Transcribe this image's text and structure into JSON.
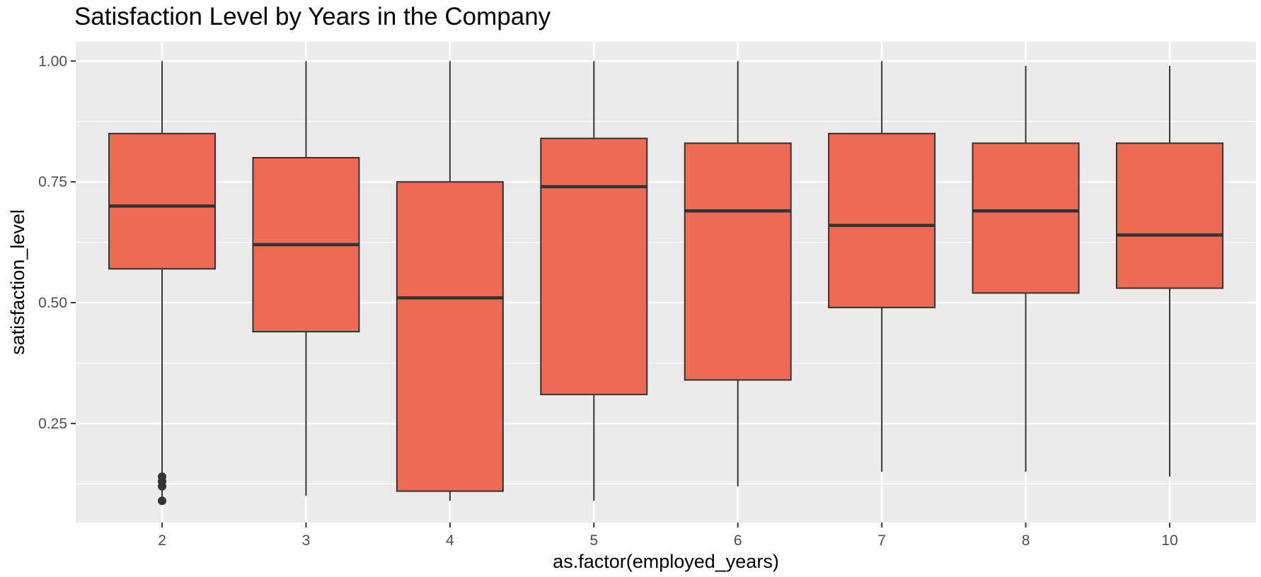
{
  "chart_data": {
    "type": "boxplot",
    "title": "Satisfaction Level by Years in the Company",
    "xlabel": "as.factor(employed_years)",
    "ylabel": "satisfaction_level",
    "ylim": [
      0.045,
      1.04
    ],
    "yticks": [
      0.25,
      0.5,
      0.75,
      1.0
    ],
    "ytick_labels": [
      "0.25",
      "0.50",
      "0.75",
      "1.00"
    ],
    "grid": true,
    "legend": "none",
    "colors": {
      "fill": "#ee6a52",
      "stroke": "#333333",
      "panel": "#ebebeb",
      "grid": "#ffffff"
    },
    "categories": [
      "2",
      "3",
      "4",
      "5",
      "6",
      "7",
      "8",
      "10"
    ],
    "boxes": [
      {
        "category": "2",
        "min": 0.09,
        "q1": 0.57,
        "median": 0.7,
        "q3": 0.85,
        "max": 1.0,
        "outliers": [
          0.09,
          0.12,
          0.13,
          0.14
        ]
      },
      {
        "category": "3",
        "min": 0.1,
        "q1": 0.44,
        "median": 0.62,
        "q3": 0.8,
        "max": 1.0,
        "outliers": []
      },
      {
        "category": "4",
        "min": 0.09,
        "q1": 0.11,
        "median": 0.51,
        "q3": 0.75,
        "max": 1.0,
        "outliers": []
      },
      {
        "category": "5",
        "min": 0.09,
        "q1": 0.31,
        "median": 0.74,
        "q3": 0.84,
        "max": 1.0,
        "outliers": []
      },
      {
        "category": "6",
        "min": 0.12,
        "q1": 0.34,
        "median": 0.69,
        "q3": 0.83,
        "max": 1.0,
        "outliers": []
      },
      {
        "category": "7",
        "min": 0.15,
        "q1": 0.49,
        "median": 0.66,
        "q3": 0.85,
        "max": 1.0,
        "outliers": []
      },
      {
        "category": "8",
        "min": 0.15,
        "q1": 0.52,
        "median": 0.69,
        "q3": 0.83,
        "max": 0.99,
        "outliers": []
      },
      {
        "category": "10",
        "min": 0.14,
        "q1": 0.53,
        "median": 0.64,
        "q3": 0.83,
        "max": 0.99,
        "outliers": []
      }
    ]
  }
}
